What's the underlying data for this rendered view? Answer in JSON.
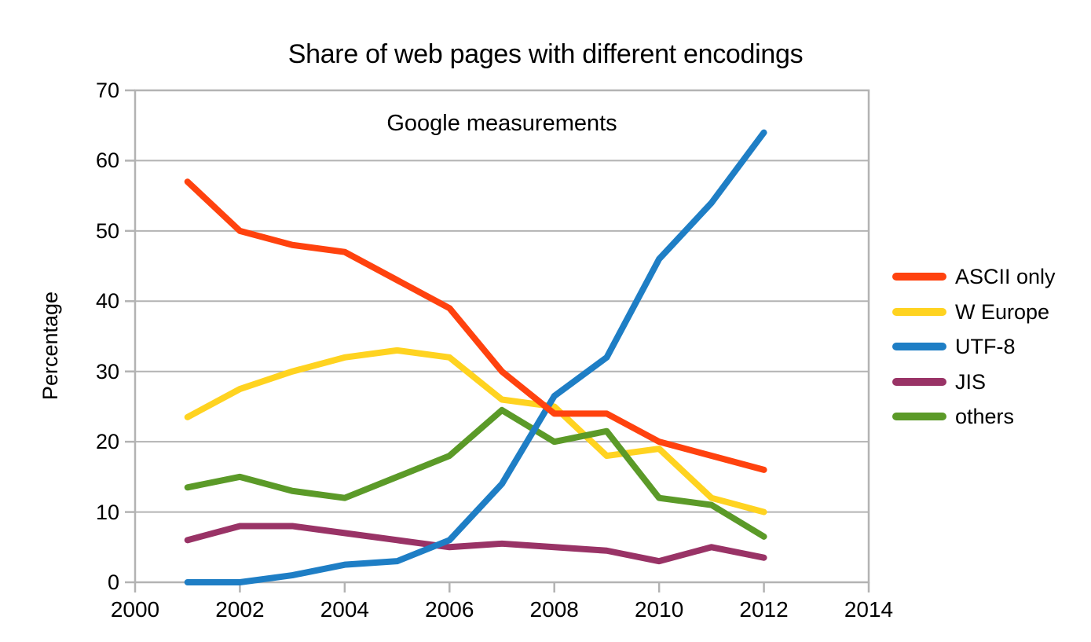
{
  "title": "Share of web pages with different encodings",
  "subtitle": "Google measurements",
  "y_axis_title": "Percentage",
  "chart_data": {
    "type": "line",
    "x": [
      2001,
      2002,
      2003,
      2004,
      2005,
      2006,
      2007,
      2008,
      2009,
      2010,
      2011,
      2012
    ],
    "series": [
      {
        "name": "ASCII only",
        "color": "#FF420E",
        "values": [
          57,
          50,
          48,
          47,
          43,
          39,
          30,
          24,
          24,
          20,
          18,
          16
        ]
      },
      {
        "name": "W Europe",
        "color": "#FFD320",
        "values": [
          23.5,
          27.5,
          30,
          32,
          33,
          32,
          26,
          25,
          18,
          19,
          12,
          10
        ]
      },
      {
        "name": "UTF-8",
        "color": "#1E7EC5",
        "values": [
          0,
          0,
          1,
          2.5,
          3,
          6,
          14,
          26.5,
          32,
          46,
          54,
          64
        ]
      },
      {
        "name": "JIS",
        "color": "#993366",
        "values": [
          6,
          8,
          8,
          7,
          6,
          5,
          5.5,
          5,
          4.5,
          3,
          5,
          3.5
        ]
      },
      {
        "name": "others",
        "color": "#5B9A28",
        "values": [
          13.5,
          15,
          13,
          12,
          15,
          18,
          24.5,
          20,
          21.5,
          12,
          11,
          6.5
        ]
      }
    ],
    "xlim": [
      2000,
      2014
    ],
    "ylim": [
      0,
      70
    ],
    "x_ticks": [
      2000,
      2002,
      2004,
      2006,
      2008,
      2010,
      2012,
      2014
    ],
    "y_ticks": [
      0,
      10,
      20,
      30,
      40,
      50,
      60,
      70
    ],
    "grid": true,
    "legend_position": "right",
    "draw_order": [
      "W Europe",
      "JIS",
      "others",
      "UTF-8",
      "ASCII only"
    ]
  },
  "style": {
    "axis_color": "#B3B3B3",
    "text_color": "#000000",
    "background": "#FFFFFF"
  }
}
